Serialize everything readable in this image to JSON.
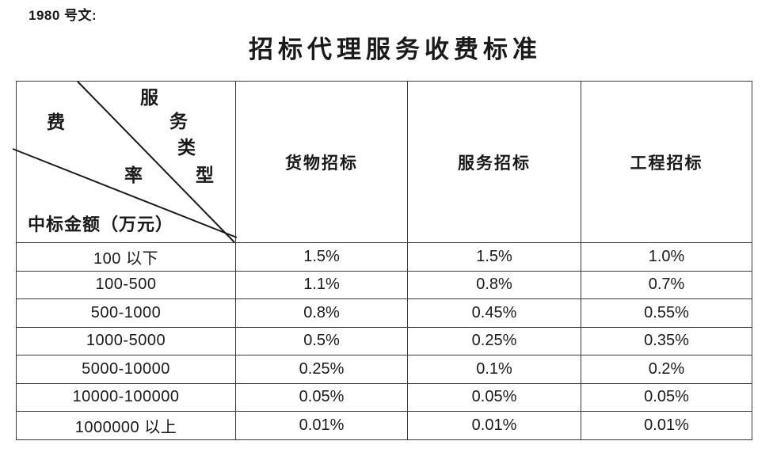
{
  "page": {
    "doc_ref": "1980 号文:",
    "title": "招标代理服务收费标准"
  },
  "fee_table": {
    "corner": {
      "fee_axis_chars": [
        "费",
        "率"
      ],
      "type_axis_chars": [
        "服",
        "务",
        "类",
        "型"
      ],
      "amount_axis_label": "中标金额（万元）"
    },
    "columns": [
      "货物招标",
      "服务招标",
      "工程招标"
    ],
    "rows": [
      {
        "label": "100 以下",
        "values": [
          "1.5%",
          "1.5%",
          "1.0%"
        ]
      },
      {
        "label": "100-500",
        "values": [
          "1.1%",
          "0.8%",
          "0.7%"
        ]
      },
      {
        "label": "500-1000",
        "values": [
          "0.8%",
          "0.45%",
          "0.55%"
        ]
      },
      {
        "label": "1000-5000",
        "values": [
          "0.5%",
          "0.25%",
          "0.35%"
        ]
      },
      {
        "label": "5000-10000",
        "values": [
          "0.25%",
          "0.1%",
          "0.2%"
        ]
      },
      {
        "label": "10000-100000",
        "values": [
          "0.05%",
          "0.05%",
          "0.05%"
        ]
      },
      {
        "label": "1000000 以上",
        "values": [
          "0.01%",
          "0.01%",
          "0.01%"
        ]
      }
    ]
  },
  "colors": {
    "background": "#ffffff",
    "border": "#3a3a3a",
    "text": "#1a1a1a",
    "diagonal_line": "#1a1a1a"
  }
}
